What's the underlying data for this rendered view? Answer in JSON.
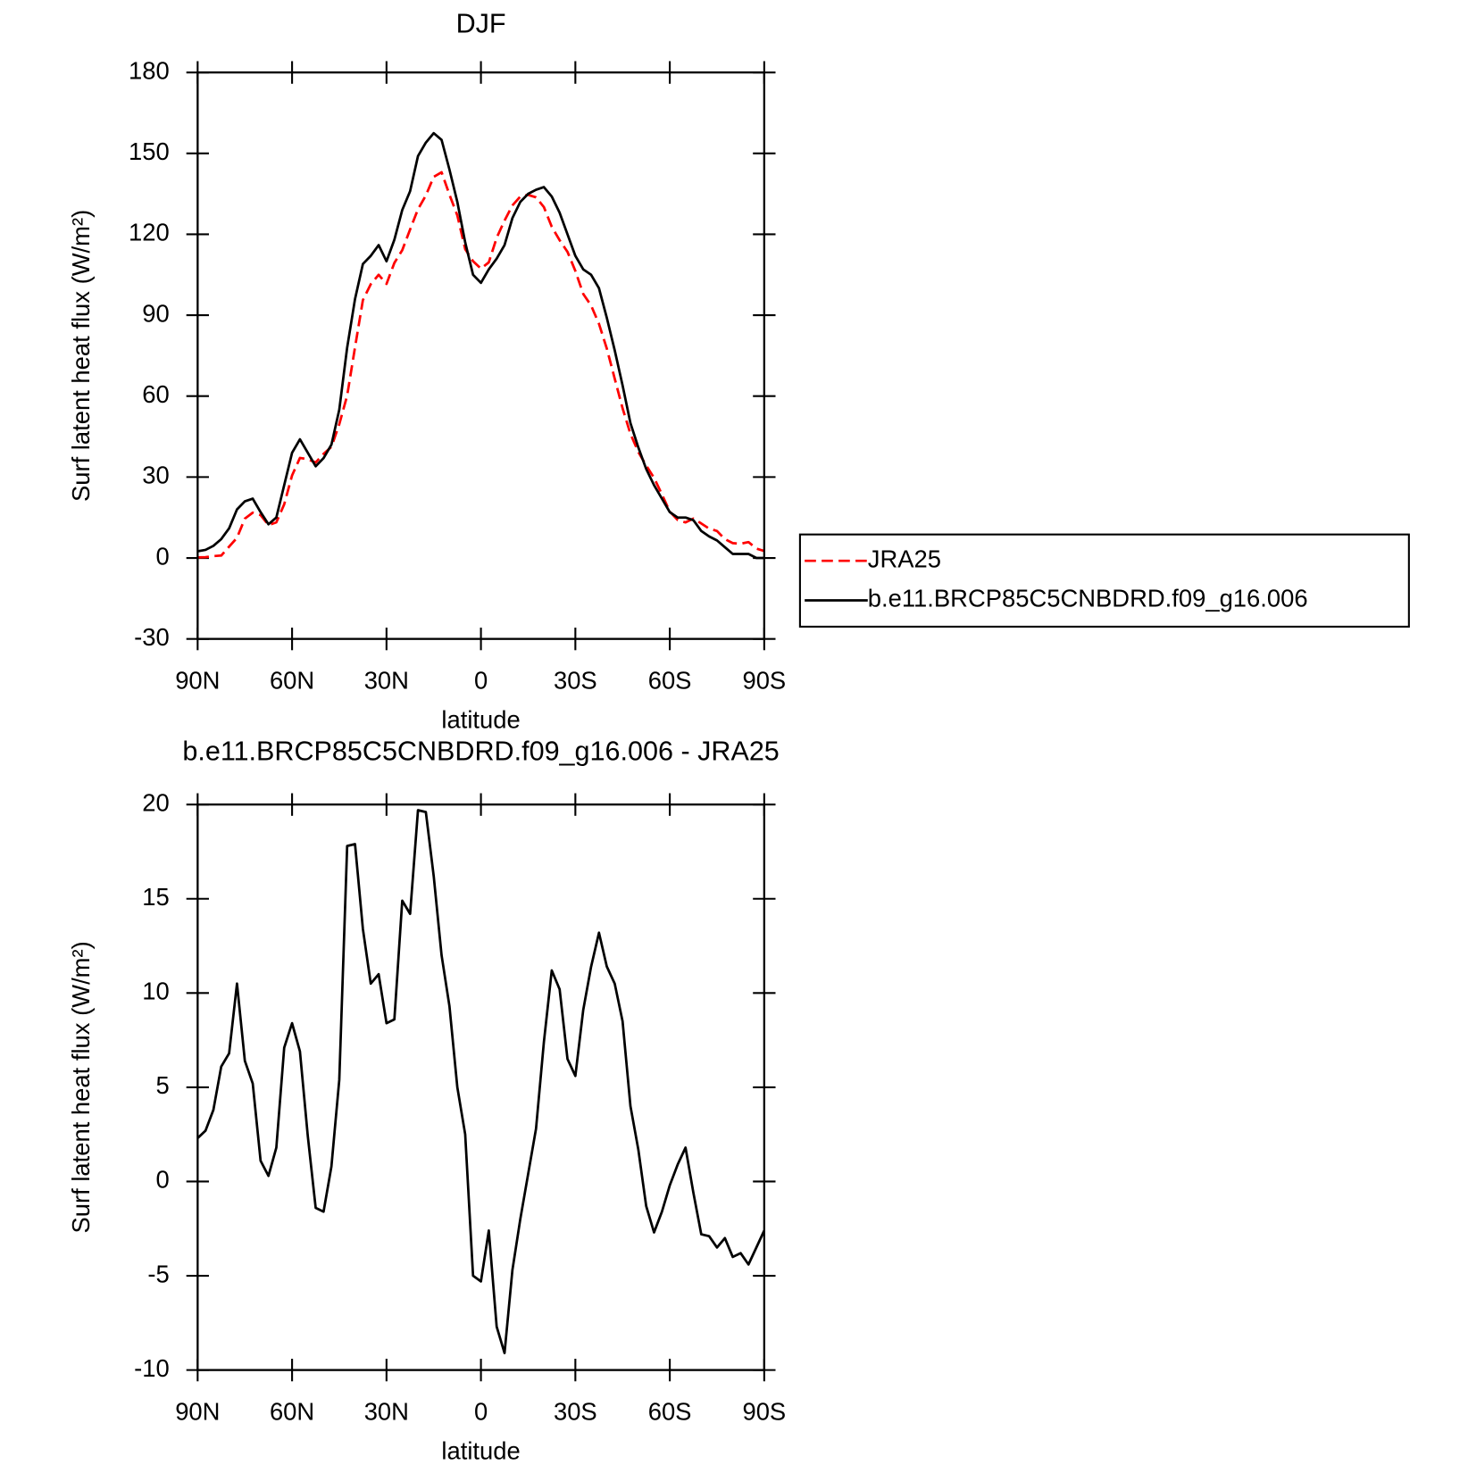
{
  "chart_data": [
    {
      "type": "line",
      "title": "DJF",
      "xlabel": "latitude",
      "ylabel": "Surf latent heat flux (W/m²)",
      "x": [
        90,
        87.5,
        85,
        82.5,
        80,
        77.5,
        75,
        72.5,
        70,
        67.5,
        65,
        62.5,
        60,
        57.5,
        55,
        52.5,
        50,
        47.5,
        45,
        42.5,
        40,
        37.5,
        35,
        32.5,
        30,
        27.5,
        25,
        22.5,
        20,
        17.5,
        15,
        12.5,
        10,
        7.5,
        5,
        2.5,
        0,
        -2.5,
        -5,
        -7.5,
        -10,
        -12.5,
        -15,
        -17.5,
        -20,
        -22.5,
        -25,
        -27.5,
        -30,
        -32.5,
        -35,
        -37.5,
        -40,
        -42.5,
        -45,
        -47.5,
        -50,
        -52.5,
        -55,
        -57.5,
        -60,
        -62.5,
        -65,
        -67.5,
        -70,
        -72.5,
        -75,
        -77.5,
        -80,
        -82.5,
        -85,
        -87.5,
        -90
      ],
      "xlim": [
        90,
        -90
      ],
      "xticks": [
        {
          "value": 90,
          "label": "90N"
        },
        {
          "value": 60,
          "label": "60N"
        },
        {
          "value": 30,
          "label": "30N"
        },
        0,
        {
          "value": -30,
          "label": "30S"
        },
        {
          "value": -60,
          "label": "60S"
        },
        {
          "value": -90,
          "label": "90S"
        }
      ],
      "ylim": [
        -30,
        180
      ],
      "yticks": [
        -30,
        0,
        30,
        60,
        90,
        120,
        150,
        180
      ],
      "legend": "right",
      "series": [
        {
          "name": "JRA25",
          "color": "#ff0000",
          "style": "dashed",
          "values": [
            0.2,
            0.3,
            0.7,
            0.9,
            4.2,
            7.5,
            14.6,
            16.8,
            15.9,
            12.2,
            13.2,
            19.9,
            30.6,
            37.1,
            36.6,
            35.4,
            38.6,
            41.2,
            49.6,
            60.2,
            78.1,
            95.6,
            101.5,
            105,
            101.6,
            109.4,
            114.1,
            121.8,
            129.3,
            134.4,
            141.3,
            143,
            134.7,
            127,
            114.5,
            110,
            107.3,
            109.6,
            118.7,
            125.1,
            130.7,
            134,
            134.6,
            133.7,
            130.1,
            122.8,
            117.8,
            113.5,
            106.4,
            97.9,
            93.6,
            86.8,
            77.6,
            66.5,
            55.5,
            46,
            39.3,
            34.3,
            29.7,
            23.6,
            17.2,
            14.1,
            13.2,
            14.6,
            12.8,
            10.9,
            10,
            7,
            5.5,
            5.3,
            5.9,
            3.5,
            2.6
          ]
        },
        {
          "name": "b.e11.BRCP85C5CNBDRD.f09_g16.006",
          "color": "#000000",
          "style": "solid",
          "values": [
            2.5,
            3,
            4.5,
            7,
            11,
            18,
            21,
            22,
            17,
            12.5,
            15,
            27,
            39,
            44,
            39,
            34,
            37,
            42,
            55,
            78,
            96,
            109,
            112,
            116,
            110,
            118,
            129,
            136,
            149,
            154,
            157.5,
            155,
            144,
            132,
            117,
            105,
            102,
            107,
            111,
            116,
            126,
            132,
            135,
            136.5,
            137.5,
            134,
            128,
            120,
            112,
            107,
            105,
            100,
            89,
            77,
            64,
            50,
            41,
            33,
            27,
            22,
            17,
            15,
            15,
            14,
            10,
            8,
            6.5,
            4,
            1.5,
            1.5,
            1.5,
            0,
            0
          ]
        }
      ]
    },
    {
      "type": "line",
      "title": "b.e11.BRCP85C5CNBDRD.f09_g16.006 - JRA25",
      "xlabel": "latitude",
      "ylabel": "Surf latent heat flux (W/m²)",
      "x": [
        90,
        87.5,
        85,
        82.5,
        80,
        77.5,
        75,
        72.5,
        70,
        67.5,
        65,
        62.5,
        60,
        57.5,
        55,
        52.5,
        50,
        47.5,
        45,
        42.5,
        40,
        37.5,
        35,
        32.5,
        30,
        27.5,
        25,
        22.5,
        20,
        17.5,
        15,
        12.5,
        10,
        7.5,
        5,
        2.5,
        0,
        -2.5,
        -5,
        -7.5,
        -10,
        -12.5,
        -15,
        -17.5,
        -20,
        -22.5,
        -25,
        -27.5,
        -30,
        -32.5,
        -35,
        -37.5,
        -40,
        -42.5,
        -45,
        -47.5,
        -50,
        -52.5,
        -55,
        -57.5,
        -60,
        -62.5,
        -65,
        -67.5,
        -70,
        -72.5,
        -75,
        -77.5,
        -80,
        -82.5,
        -85,
        -87.5,
        -90
      ],
      "xlim": [
        90,
        -90
      ],
      "xticks": [
        {
          "value": 90,
          "label": "90N"
        },
        {
          "value": 60,
          "label": "60N"
        },
        {
          "value": 30,
          "label": "30N"
        },
        0,
        {
          "value": -30,
          "label": "30S"
        },
        {
          "value": -60,
          "label": "60S"
        },
        {
          "value": -90,
          "label": "90S"
        }
      ],
      "ylim": [
        -10,
        20
      ],
      "yticks": [
        -10,
        -5,
        0,
        5,
        10,
        15,
        20
      ],
      "series": [
        {
          "color": "#000000",
          "style": "solid",
          "values": [
            2.3,
            2.7,
            3.8,
            6.1,
            6.8,
            10.5,
            6.4,
            5.2,
            1.1,
            0.3,
            1.8,
            7.1,
            8.4,
            6.9,
            2.4,
            -1.4,
            -1.6,
            0.8,
            5.4,
            17.8,
            17.9,
            13.4,
            10.5,
            11,
            8.4,
            8.6,
            14.9,
            14.2,
            19.7,
            19.6,
            16.2,
            12,
            9.3,
            5,
            2.5,
            -5,
            -5.3,
            -2.6,
            -7.7,
            -9.1,
            -4.7,
            -2,
            0.4,
            2.8,
            7.4,
            11.2,
            10.2,
            6.5,
            5.6,
            9.1,
            11.4,
            13.2,
            11.4,
            10.5,
            8.5,
            4,
            1.7,
            -1.3,
            -2.7,
            -1.6,
            -0.2,
            0.9,
            1.8,
            -0.6,
            -2.8,
            -2.9,
            -3.5,
            -3,
            -4,
            -3.8,
            -4.4,
            -3.5,
            -2.6
          ]
        }
      ]
    }
  ]
}
